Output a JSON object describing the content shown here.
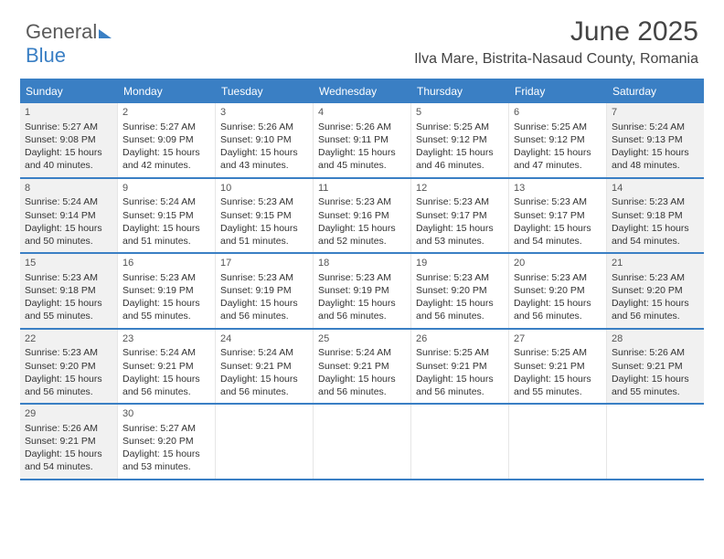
{
  "logo": {
    "part1": "General",
    "part2": "Blue"
  },
  "title": "June 2025",
  "subtitle": "Ilva Mare, Bistrita-Nasaud County, Romania",
  "colors": {
    "accent": "#3a7fc4",
    "text": "#333333",
    "shaded": "#f1f1f1",
    "background": "#ffffff"
  },
  "dayHeaders": [
    "Sunday",
    "Monday",
    "Tuesday",
    "Wednesday",
    "Thursday",
    "Friday",
    "Saturday"
  ],
  "weeks": [
    [
      {
        "n": "1",
        "sr": "Sunrise: 5:27 AM",
        "ss": "Sunset: 9:08 PM",
        "d1": "Daylight: 15 hours",
        "d2": "and 40 minutes.",
        "sh": true
      },
      {
        "n": "2",
        "sr": "Sunrise: 5:27 AM",
        "ss": "Sunset: 9:09 PM",
        "d1": "Daylight: 15 hours",
        "d2": "and 42 minutes."
      },
      {
        "n": "3",
        "sr": "Sunrise: 5:26 AM",
        "ss": "Sunset: 9:10 PM",
        "d1": "Daylight: 15 hours",
        "d2": "and 43 minutes."
      },
      {
        "n": "4",
        "sr": "Sunrise: 5:26 AM",
        "ss": "Sunset: 9:11 PM",
        "d1": "Daylight: 15 hours",
        "d2": "and 45 minutes."
      },
      {
        "n": "5",
        "sr": "Sunrise: 5:25 AM",
        "ss": "Sunset: 9:12 PM",
        "d1": "Daylight: 15 hours",
        "d2": "and 46 minutes."
      },
      {
        "n": "6",
        "sr": "Sunrise: 5:25 AM",
        "ss": "Sunset: 9:12 PM",
        "d1": "Daylight: 15 hours",
        "d2": "and 47 minutes."
      },
      {
        "n": "7",
        "sr": "Sunrise: 5:24 AM",
        "ss": "Sunset: 9:13 PM",
        "d1": "Daylight: 15 hours",
        "d2": "and 48 minutes.",
        "sh": true
      }
    ],
    [
      {
        "n": "8",
        "sr": "Sunrise: 5:24 AM",
        "ss": "Sunset: 9:14 PM",
        "d1": "Daylight: 15 hours",
        "d2": "and 50 minutes.",
        "sh": true
      },
      {
        "n": "9",
        "sr": "Sunrise: 5:24 AM",
        "ss": "Sunset: 9:15 PM",
        "d1": "Daylight: 15 hours",
        "d2": "and 51 minutes."
      },
      {
        "n": "10",
        "sr": "Sunrise: 5:23 AM",
        "ss": "Sunset: 9:15 PM",
        "d1": "Daylight: 15 hours",
        "d2": "and 51 minutes."
      },
      {
        "n": "11",
        "sr": "Sunrise: 5:23 AM",
        "ss": "Sunset: 9:16 PM",
        "d1": "Daylight: 15 hours",
        "d2": "and 52 minutes."
      },
      {
        "n": "12",
        "sr": "Sunrise: 5:23 AM",
        "ss": "Sunset: 9:17 PM",
        "d1": "Daylight: 15 hours",
        "d2": "and 53 minutes."
      },
      {
        "n": "13",
        "sr": "Sunrise: 5:23 AM",
        "ss": "Sunset: 9:17 PM",
        "d1": "Daylight: 15 hours",
        "d2": "and 54 minutes."
      },
      {
        "n": "14",
        "sr": "Sunrise: 5:23 AM",
        "ss": "Sunset: 9:18 PM",
        "d1": "Daylight: 15 hours",
        "d2": "and 54 minutes.",
        "sh": true
      }
    ],
    [
      {
        "n": "15",
        "sr": "Sunrise: 5:23 AM",
        "ss": "Sunset: 9:18 PM",
        "d1": "Daylight: 15 hours",
        "d2": "and 55 minutes.",
        "sh": true
      },
      {
        "n": "16",
        "sr": "Sunrise: 5:23 AM",
        "ss": "Sunset: 9:19 PM",
        "d1": "Daylight: 15 hours",
        "d2": "and 55 minutes."
      },
      {
        "n": "17",
        "sr": "Sunrise: 5:23 AM",
        "ss": "Sunset: 9:19 PM",
        "d1": "Daylight: 15 hours",
        "d2": "and 56 minutes."
      },
      {
        "n": "18",
        "sr": "Sunrise: 5:23 AM",
        "ss": "Sunset: 9:19 PM",
        "d1": "Daylight: 15 hours",
        "d2": "and 56 minutes."
      },
      {
        "n": "19",
        "sr": "Sunrise: 5:23 AM",
        "ss": "Sunset: 9:20 PM",
        "d1": "Daylight: 15 hours",
        "d2": "and 56 minutes."
      },
      {
        "n": "20",
        "sr": "Sunrise: 5:23 AM",
        "ss": "Sunset: 9:20 PM",
        "d1": "Daylight: 15 hours",
        "d2": "and 56 minutes."
      },
      {
        "n": "21",
        "sr": "Sunrise: 5:23 AM",
        "ss": "Sunset: 9:20 PM",
        "d1": "Daylight: 15 hours",
        "d2": "and 56 minutes.",
        "sh": true
      }
    ],
    [
      {
        "n": "22",
        "sr": "Sunrise: 5:23 AM",
        "ss": "Sunset: 9:20 PM",
        "d1": "Daylight: 15 hours",
        "d2": "and 56 minutes.",
        "sh": true
      },
      {
        "n": "23",
        "sr": "Sunrise: 5:24 AM",
        "ss": "Sunset: 9:21 PM",
        "d1": "Daylight: 15 hours",
        "d2": "and 56 minutes."
      },
      {
        "n": "24",
        "sr": "Sunrise: 5:24 AM",
        "ss": "Sunset: 9:21 PM",
        "d1": "Daylight: 15 hours",
        "d2": "and 56 minutes."
      },
      {
        "n": "25",
        "sr": "Sunrise: 5:24 AM",
        "ss": "Sunset: 9:21 PM",
        "d1": "Daylight: 15 hours",
        "d2": "and 56 minutes."
      },
      {
        "n": "26",
        "sr": "Sunrise: 5:25 AM",
        "ss": "Sunset: 9:21 PM",
        "d1": "Daylight: 15 hours",
        "d2": "and 56 minutes."
      },
      {
        "n": "27",
        "sr": "Sunrise: 5:25 AM",
        "ss": "Sunset: 9:21 PM",
        "d1": "Daylight: 15 hours",
        "d2": "and 55 minutes."
      },
      {
        "n": "28",
        "sr": "Sunrise: 5:26 AM",
        "ss": "Sunset: 9:21 PM",
        "d1": "Daylight: 15 hours",
        "d2": "and 55 minutes.",
        "sh": true
      }
    ],
    [
      {
        "n": "29",
        "sr": "Sunrise: 5:26 AM",
        "ss": "Sunset: 9:21 PM",
        "d1": "Daylight: 15 hours",
        "d2": "and 54 minutes.",
        "sh": true
      },
      {
        "n": "30",
        "sr": "Sunrise: 5:27 AM",
        "ss": "Sunset: 9:20 PM",
        "d1": "Daylight: 15 hours",
        "d2": "and 53 minutes."
      },
      {
        "empty": true
      },
      {
        "empty": true
      },
      {
        "empty": true
      },
      {
        "empty": true
      },
      {
        "empty": true
      }
    ]
  ]
}
